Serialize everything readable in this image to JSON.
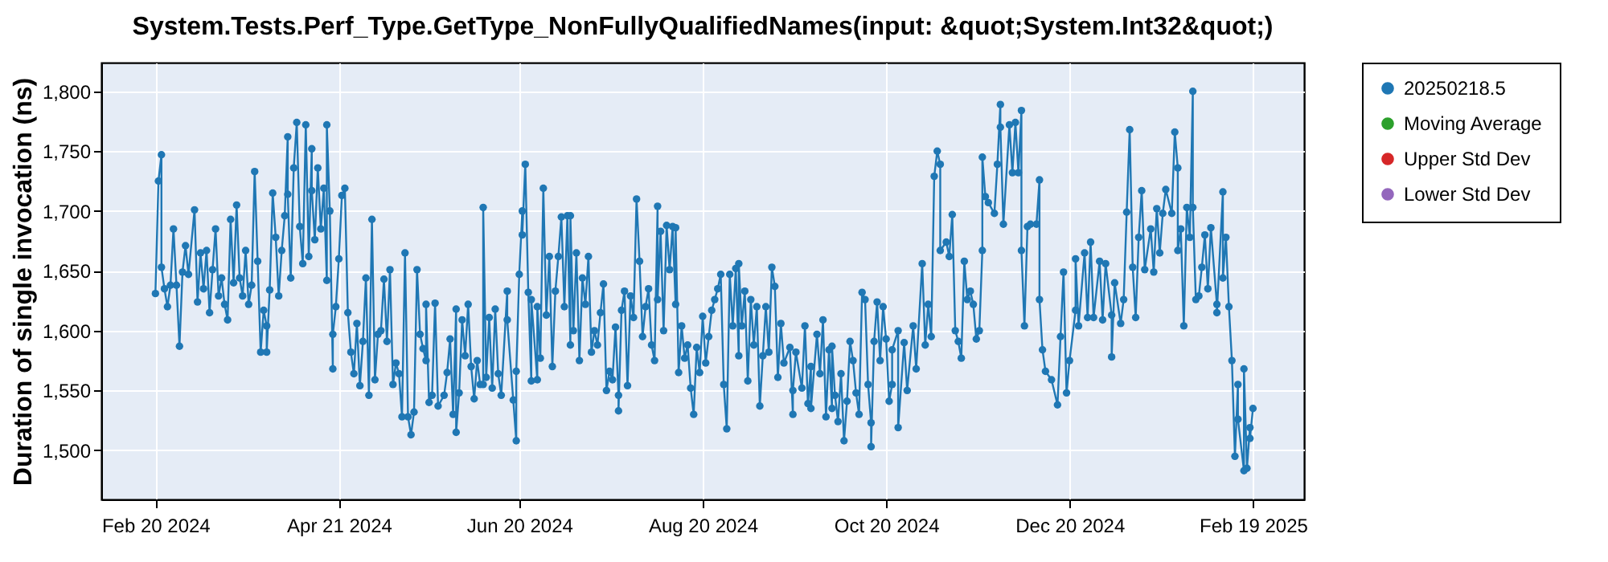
{
  "chart_data": {
    "type": "line",
    "title": "System.Tests.Perf_Type.GetType_NonFullyQualifiedNames(input: &quot;System.Int32&quot;)",
    "ylabel": "Duration of single invocation (ns)",
    "xlim": [
      "2024-02-02",
      "2025-03-08"
    ],
    "xticks": [
      {
        "value": "2024-02-20",
        "label": "Feb 20 2024"
      },
      {
        "value": "2024-04-21",
        "label": "Apr 21 2024"
      },
      {
        "value": "2024-06-20",
        "label": "Jun 20 2024"
      },
      {
        "value": "2024-08-20",
        "label": "Aug 20 2024"
      },
      {
        "value": "2024-10-20",
        "label": "Oct 20 2024"
      },
      {
        "value": "2024-12-20",
        "label": "Dec 20 2024"
      },
      {
        "value": "2025-02-19",
        "label": "Feb 19 2025"
      }
    ],
    "ylim": [
      1459,
      1824
    ],
    "yticks": [
      {
        "value": 1500,
        "label": "1,500"
      },
      {
        "value": 1550,
        "label": "1,550"
      },
      {
        "value": 1600,
        "label": "1,600"
      },
      {
        "value": 1650,
        "label": "1,650"
      },
      {
        "value": 1700,
        "label": "1,700"
      },
      {
        "value": 1750,
        "label": "1,750"
      },
      {
        "value": 1800,
        "label": "1,800"
      }
    ],
    "grid": true,
    "legend": "right",
    "marker": "circle",
    "line_style": "solid",
    "x": [
      "2024-02-20",
      "2024-02-21",
      "2024-02-22",
      "2024-02-22",
      "2024-02-23",
      "2024-02-24",
      "2024-02-25",
      "2024-02-26",
      "2024-02-27",
      "2024-02-28",
      "2024-02-29",
      "2024-03-01",
      "2024-03-02",
      "2024-03-04",
      "2024-03-05",
      "2024-03-06",
      "2024-03-07",
      "2024-03-08",
      "2024-03-09",
      "2024-03-10",
      "2024-03-11",
      "2024-03-12",
      "2024-03-13",
      "2024-03-14",
      "2024-03-15",
      "2024-03-16",
      "2024-03-17",
      "2024-03-18",
      "2024-03-19",
      "2024-03-20",
      "2024-03-21",
      "2024-03-22",
      "2024-03-23",
      "2024-03-24",
      "2024-03-25",
      "2024-03-26",
      "2024-03-27",
      "2024-03-28",
      "2024-03-28",
      "2024-03-29",
      "2024-03-30",
      "2024-03-31",
      "2024-04-01",
      "2024-04-02",
      "2024-04-03",
      "2024-04-04",
      "2024-04-04",
      "2024-04-05",
      "2024-04-06",
      "2024-04-07",
      "2024-04-08",
      "2024-04-09",
      "2024-04-10",
      "2024-04-11",
      "2024-04-12",
      "2024-04-12",
      "2024-04-13",
      "2024-04-14",
      "2024-04-15",
      "2024-04-16",
      "2024-04-17",
      "2024-04-17",
      "2024-04-18",
      "2024-04-19",
      "2024-04-19",
      "2024-04-20",
      "2024-04-21",
      "2024-04-22",
      "2024-04-23",
      "2024-04-24",
      "2024-04-25",
      "2024-04-26",
      "2024-04-27",
      "2024-04-28",
      "2024-04-29",
      "2024-04-30",
      "2024-05-01",
      "2024-05-02",
      "2024-05-03",
      "2024-05-04",
      "2024-05-05",
      "2024-05-06",
      "2024-05-07",
      "2024-05-08",
      "2024-05-09",
      "2024-05-10",
      "2024-05-11",
      "2024-05-12",
      "2024-05-13",
      "2024-05-14",
      "2024-05-15",
      "2024-05-16",
      "2024-05-17",
      "2024-05-18",
      "2024-05-19",
      "2024-05-20",
      "2024-05-20",
      "2024-05-21",
      "2024-05-22",
      "2024-05-23",
      "2024-05-24",
      "2024-05-26",
      "2024-05-27",
      "2024-05-28",
      "2024-05-29",
      "2024-05-30",
      "2024-05-30",
      "2024-05-31",
      "2024-06-01",
      "2024-06-02",
      "2024-06-03",
      "2024-06-04",
      "2024-06-05",
      "2024-06-06",
      "2024-06-07",
      "2024-06-08",
      "2024-06-08",
      "2024-06-09",
      "2024-06-10",
      "2024-06-11",
      "2024-06-12",
      "2024-06-13",
      "2024-06-14",
      "2024-06-16",
      "2024-06-16",
      "2024-06-18",
      "2024-06-19",
      "2024-06-19",
      "2024-06-20",
      "2024-06-21",
      "2024-06-21",
      "2024-06-22",
      "2024-06-23",
      "2024-06-24",
      "2024-06-24",
      "2024-06-26",
      "2024-06-26",
      "2024-06-27",
      "2024-06-28",
      "2024-06-29",
      "2024-06-30",
      "2024-07-01",
      "2024-07-02",
      "2024-07-03",
      "2024-07-04",
      "2024-07-05",
      "2024-07-06",
      "2024-07-07",
      "2024-07-07",
      "2024-07-08",
      "2024-07-09",
      "2024-07-10",
      "2024-07-11",
      "2024-07-12",
      "2024-07-13",
      "2024-07-14",
      "2024-07-15",
      "2024-07-16",
      "2024-07-17",
      "2024-07-18",
      "2024-07-19",
      "2024-07-20",
      "2024-07-21",
      "2024-07-22",
      "2024-07-23",
      "2024-07-23",
      "2024-07-24",
      "2024-07-25",
      "2024-07-26",
      "2024-07-27",
      "2024-07-28",
      "2024-07-29",
      "2024-07-30",
      "2024-07-31",
      "2024-08-01",
      "2024-08-02",
      "2024-08-03",
      "2024-08-04",
      "2024-08-05",
      "2024-08-05",
      "2024-08-06",
      "2024-08-07",
      "2024-08-08",
      "2024-08-09",
      "2024-08-10",
      "2024-08-11",
      "2024-08-11",
      "2024-08-12",
      "2024-08-13",
      "2024-08-14",
      "2024-08-15",
      "2024-08-16",
      "2024-08-17",
      "2024-08-18",
      "2024-08-19",
      "2024-08-20",
      "2024-08-21",
      "2024-08-22",
      "2024-08-23",
      "2024-08-24",
      "2024-08-25",
      "2024-08-26",
      "2024-08-27",
      "2024-08-28",
      "2024-08-29",
      "2024-08-30",
      "2024-08-31",
      "2024-09-01",
      "2024-09-01",
      "2024-09-02",
      "2024-09-03",
      "2024-09-04",
      "2024-09-05",
      "2024-09-06",
      "2024-09-07",
      "2024-09-08",
      "2024-09-09",
      "2024-09-10",
      "2024-09-11",
      "2024-09-12",
      "2024-09-13",
      "2024-09-14",
      "2024-09-15",
      "2024-09-16",
      "2024-09-18",
      "2024-09-19",
      "2024-09-19",
      "2024-09-20",
      "2024-09-22",
      "2024-09-23",
      "2024-09-24",
      "2024-09-25",
      "2024-09-25",
      "2024-09-27",
      "2024-09-28",
      "2024-09-29",
      "2024-09-30",
      "2024-10-01",
      "2024-10-02",
      "2024-10-02",
      "2024-10-03",
      "2024-10-04",
      "2024-10-05",
      "2024-10-06",
      "2024-10-07",
      "2024-10-08",
      "2024-10-09",
      "2024-10-10",
      "2024-10-11",
      "2024-10-12",
      "2024-10-13",
      "2024-10-14",
      "2024-10-15",
      "2024-10-15",
      "2024-10-16",
      "2024-10-17",
      "2024-10-18",
      "2024-10-19",
      "2024-10-20",
      "2024-10-21",
      "2024-10-22",
      "2024-10-22",
      "2024-10-24",
      "2024-10-24",
      "2024-10-26",
      "2024-10-27",
      "2024-10-29",
      "2024-10-30",
      "2024-11-01",
      "2024-11-02",
      "2024-11-03",
      "2024-11-04",
      "2024-11-05",
      "2024-11-06",
      "2024-11-07",
      "2024-11-07",
      "2024-11-09",
      "2024-11-10",
      "2024-11-11",
      "2024-11-12",
      "2024-11-13",
      "2024-11-14",
      "2024-11-15",
      "2024-11-16",
      "2024-11-17",
      "2024-11-18",
      "2024-11-19",
      "2024-11-20",
      "2024-11-21",
      "2024-11-21",
      "2024-11-22",
      "2024-11-23",
      "2024-11-25",
      "2024-11-26",
      "2024-11-27",
      "2024-11-27",
      "2024-11-28",
      "2024-11-30",
      "2024-12-01",
      "2024-12-02",
      "2024-12-03",
      "2024-12-04",
      "2024-12-04",
      "2024-12-05",
      "2024-12-06",
      "2024-12-07",
      "2024-12-09",
      "2024-12-10",
      "2024-12-10",
      "2024-12-11",
      "2024-12-12",
      "2024-12-14",
      "2024-12-16",
      "2024-12-17",
      "2024-12-18",
      "2024-12-19",
      "2024-12-20",
      "2024-12-22",
      "2024-12-22",
      "2024-12-23",
      "2024-12-25",
      "2024-12-26",
      "2024-12-27",
      "2024-12-28",
      "2024-12-30",
      "2024-12-31",
      "2025-01-01",
      "2025-01-03",
      "2025-01-03",
      "2025-01-04",
      "2025-01-06",
      "2025-01-07",
      "2025-01-08",
      "2025-01-09",
      "2025-01-10",
      "2025-01-11",
      "2025-01-12",
      "2025-01-13",
      "2025-01-14",
      "2025-01-16",
      "2025-01-17",
      "2025-01-18",
      "2025-01-19",
      "2025-01-20",
      "2025-01-21",
      "2025-01-23",
      "2025-01-24",
      "2025-01-25",
      "2025-01-25",
      "2025-01-26",
      "2025-01-27",
      "2025-01-28",
      "2025-01-29",
      "2025-01-30",
      "2025-01-30",
      "2025-01-31",
      "2025-02-01",
      "2025-02-02",
      "2025-02-03",
      "2025-02-04",
      "2025-02-05",
      "2025-02-07",
      "2025-02-07",
      "2025-02-09",
      "2025-02-09",
      "2025-02-10",
      "2025-02-11",
      "2025-02-12",
      "2025-02-13",
      "2025-02-14",
      "2025-02-14",
      "2025-02-16",
      "2025-02-16",
      "2025-02-17",
      "2025-02-18",
      "2025-02-18",
      "2025-02-19"
    ],
    "series": [
      {
        "name": "20250218.5",
        "color": "#1f77b4",
        "values": [
          1631,
          1725,
          1747,
          1653,
          1635,
          1620,
          1638,
          1685,
          1638,
          1587,
          1649,
          1671,
          1647,
          1701,
          1624,
          1665,
          1635,
          1667,
          1615,
          1651,
          1685,
          1629,
          1644,
          1622,
          1609,
          1693,
          1640,
          1705,
          1644,
          1629,
          1667,
          1622,
          1638,
          1733,
          1658,
          1582,
          1617,
          1604,
          1582,
          1634,
          1715,
          1678,
          1629,
          1667,
          1696,
          1762,
          1714,
          1644,
          1736,
          1774,
          1687,
          1656,
          1772,
          1662,
          1752,
          1717,
          1676,
          1736,
          1685,
          1719,
          1642,
          1772,
          1700,
          1568,
          1597,
          1620,
          1660,
          1713,
          1719,
          1615,
          1582,
          1564,
          1606,
          1554,
          1591,
          1644,
          1546,
          1693,
          1559,
          1597,
          1600,
          1643,
          1591,
          1651,
          1555,
          1573,
          1564,
          1528,
          1665,
          1528,
          1513,
          1532,
          1651,
          1597,
          1585,
          1575,
          1622,
          1540,
          1546,
          1623,
          1537,
          1546,
          1565,
          1593,
          1530,
          1618,
          1515,
          1548,
          1609,
          1579,
          1622,
          1570,
          1543,
          1575,
          1555,
          1555,
          1703,
          1561,
          1611,
          1552,
          1618,
          1564,
          1546,
          1633,
          1609,
          1542,
          1508,
          1566,
          1647,
          1700,
          1680,
          1739,
          1632,
          1558,
          1626,
          1559,
          1620,
          1577,
          1719,
          1613,
          1662,
          1570,
          1633,
          1662,
          1695,
          1620,
          1696,
          1588,
          1696,
          1600,
          1665,
          1575,
          1644,
          1622,
          1662,
          1582,
          1600,
          1588,
          1615,
          1639,
          1550,
          1566,
          1559,
          1603,
          1546,
          1533,
          1617,
          1633,
          1554,
          1629,
          1611,
          1710,
          1658,
          1595,
          1620,
          1635,
          1588,
          1575,
          1704,
          1626,
          1683,
          1600,
          1688,
          1651,
          1687,
          1622,
          1686,
          1565,
          1604,
          1577,
          1588,
          1552,
          1530,
          1586,
          1565,
          1612,
          1573,
          1595,
          1617,
          1626,
          1635,
          1647,
          1555,
          1518,
          1647,
          1604,
          1652,
          1579,
          1656,
          1604,
          1633,
          1558,
          1626,
          1588,
          1620,
          1537,
          1579,
          1620,
          1582,
          1653,
          1637,
          1561,
          1606,
          1573,
          1586,
          1530,
          1550,
          1582,
          1552,
          1604,
          1539,
          1570,
          1535,
          1597,
          1564,
          1609,
          1528,
          1584,
          1535,
          1587,
          1546,
          1524,
          1564,
          1508,
          1541,
          1591,
          1575,
          1548,
          1530,
          1632,
          1626,
          1555,
          1523,
          1503,
          1591,
          1624,
          1575,
          1620,
          1593,
          1541,
          1555,
          1584,
          1600,
          1519,
          1590,
          1550,
          1604,
          1568,
          1656,
          1588,
          1622,
          1595,
          1729,
          1750,
          1739,
          1667,
          1674,
          1662,
          1697,
          1600,
          1591,
          1577,
          1658,
          1626,
          1633,
          1622,
          1593,
          1600,
          1667,
          1745,
          1712,
          1707,
          1698,
          1739,
          1789,
          1770,
          1689,
          1772,
          1732,
          1774,
          1732,
          1784,
          1667,
          1604,
          1687,
          1689,
          1689,
          1726,
          1626,
          1584,
          1566,
          1559,
          1538,
          1595,
          1649,
          1548,
          1575,
          1617,
          1660,
          1604,
          1665,
          1611,
          1674,
          1611,
          1658,
          1609,
          1656,
          1613,
          1578,
          1640,
          1606,
          1626,
          1699,
          1768,
          1653,
          1611,
          1678,
          1717,
          1651,
          1685,
          1649,
          1702,
          1665,
          1698,
          1718,
          1698,
          1766,
          1736,
          1667,
          1685,
          1604,
          1703,
          1678,
          1800,
          1703,
          1626,
          1629,
          1653,
          1680,
          1635,
          1686,
          1622,
          1615,
          1716,
          1644,
          1678,
          1620,
          1575,
          1495,
          1555,
          1526,
          1483,
          1568,
          1485,
          1519,
          1510,
          1535
        ]
      },
      {
        "name": "Moving Average",
        "color": "#2ca02c",
        "values": [
          null,
          null,
          null,
          null,
          null,
          null,
          null,
          null,
          null,
          null,
          null,
          null,
          null,
          null,
          null,
          null,
          null,
          null,
          null,
          null,
          null,
          null,
          null,
          null,
          null,
          null,
          null,
          null,
          null,
          null,
          null,
          null,
          null,
          null,
          null,
          null,
          null,
          null,
          null,
          null,
          null,
          null,
          null,
          null,
          null,
          null,
          null,
          null,
          null,
          null,
          null,
          null,
          null,
          null,
          null,
          null,
          null,
          null,
          null,
          null,
          null,
          null,
          null,
          null,
          null,
          null,
          null,
          null,
          null,
          null,
          null,
          null,
          null,
          null,
          null,
          null,
          null,
          null,
          null,
          null,
          null,
          null,
          null,
          null,
          null,
          null,
          null,
          null,
          null,
          null,
          null,
          null,
          null,
          null,
          null,
          null,
          null,
          null,
          null,
          null,
          null,
          null,
          null,
          null,
          null,
          null,
          null,
          null,
          null,
          null,
          null,
          null,
          null,
          null,
          null,
          null,
          null,
          null,
          null,
          null,
          null,
          null,
          null,
          null,
          null,
          null,
          null,
          null,
          null,
          null,
          null,
          null,
          null,
          null,
          null,
          null,
          null,
          null,
          null,
          null,
          null,
          null,
          null,
          null,
          null,
          null,
          null,
          null,
          null,
          null,
          null,
          null,
          null,
          null,
          null,
          null,
          null,
          null,
          null,
          null,
          null,
          null,
          null,
          null,
          null,
          null,
          null,
          null,
          null,
          null,
          null,
          null,
          null,
          null,
          null,
          null,
          null,
          null,
          null,
          null,
          null,
          null,
          null,
          null,
          null,
          null,
          null,
          null,
          null,
          null,
          null,
          null,
          null,
          null,
          null,
          null,
          null,
          null,
          null,
          null,
          null,
          null,
          null,
          null,
          null,
          null,
          null,
          null,
          null,
          null,
          null,
          null,
          null,
          null,
          null,
          null,
          null,
          null,
          null,
          null,
          null,
          null,
          null,
          null,
          null,
          null,
          null,
          null,
          null,
          null,
          null,
          null,
          null,
          null,
          null,
          null,
          null,
          null,
          null,
          null,
          null,
          null,
          null,
          null,
          null,
          null,
          null,
          null,
          null,
          null,
          null,
          null,
          null,
          null,
          null,
          null,
          null,
          null,
          null,
          null,
          null,
          null,
          null,
          null,
          null,
          null,
          null,
          null,
          null,
          null,
          null,
          null,
          null,
          null,
          null,
          null,
          null,
          null,
          null,
          null,
          null,
          null,
          null,
          null,
          null,
          null,
          null,
          null,
          null,
          null,
          null,
          null,
          null,
          null,
          null,
          null,
          null,
          null,
          null,
          null,
          null,
          null,
          null,
          null,
          null,
          null,
          null,
          null,
          null,
          null,
          null,
          null,
          null,
          null,
          null,
          null,
          null,
          null,
          null,
          null,
          null,
          null,
          null,
          null,
          null,
          null,
          null,
          null,
          null,
          null,
          null,
          null,
          null,
          null,
          null,
          null,
          null,
          null,
          null,
          null,
          null,
          null,
          null,
          null,
          null,
          null,
          null,
          null,
          null,
          null,
          null,
          null,
          null,
          null,
          null,
          null,
          null,
          null,
          null,
          null,
          null,
          null,
          null,
          null,
          null,
          null,
          null,
          null,
          null,
          null,
          null,
          null,
          null,
          null,
          null,
          null,
          null
        ]
      },
      {
        "name": "Upper Std Dev",
        "color": "#d62728",
        "values": [
          null,
          null,
          null,
          null,
          null,
          null,
          null,
          null,
          null,
          null,
          null,
          null,
          null,
          null,
          null,
          null,
          null,
          null,
          null,
          null,
          null,
          null,
          null,
          null,
          null,
          null,
          null,
          null,
          null,
          null,
          null,
          null,
          null,
          null,
          null,
          null,
          null,
          null,
          null,
          null,
          null,
          null,
          null,
          null,
          null,
          null,
          null,
          null,
          null,
          null,
          null,
          null,
          null,
          null,
          null,
          null,
          null,
          null,
          null,
          null,
          null,
          null,
          null,
          null,
          null,
          null,
          null,
          null,
          null,
          null,
          null,
          null,
          null,
          null,
          null,
          null,
          null,
          null,
          null,
          null,
          null,
          null,
          null,
          null,
          null,
          null,
          null,
          null,
          null,
          null,
          null,
          null,
          null,
          null,
          null,
          null,
          null,
          null,
          null,
          null,
          null,
          null,
          null,
          null,
          null,
          null,
          null,
          null,
          null,
          null,
          null,
          null,
          null,
          null,
          null,
          null,
          null,
          null,
          null,
          null,
          null,
          null,
          null,
          null,
          null,
          null,
          null,
          null,
          null,
          null,
          null,
          null,
          null,
          null,
          null,
          null,
          null,
          null,
          null,
          null,
          null,
          null,
          null,
          null,
          null,
          null,
          null,
          null,
          null,
          null,
          null,
          null,
          null,
          null,
          null,
          null,
          null,
          null,
          null,
          null,
          null,
          null,
          null,
          null,
          null,
          null,
          null,
          null,
          null,
          null,
          null,
          null,
          null,
          null,
          null,
          null,
          null,
          null,
          null,
          null,
          null,
          null,
          null,
          null,
          null,
          null,
          null,
          null,
          null,
          null,
          null,
          null,
          null,
          null,
          null,
          null,
          null,
          null,
          null,
          null,
          null,
          null,
          null,
          null,
          null,
          null,
          null,
          null,
          null,
          null,
          null,
          null,
          null,
          null,
          null,
          null,
          null,
          null,
          null,
          null,
          null,
          null,
          null,
          null,
          null,
          null,
          null,
          null,
          null,
          null,
          null,
          null,
          null,
          null,
          null,
          null,
          null,
          null,
          null,
          null,
          null,
          null,
          null,
          null,
          null,
          null,
          null,
          null,
          null,
          null,
          null,
          null,
          null,
          null,
          null,
          null,
          null,
          null,
          null,
          null,
          null,
          null,
          null,
          null,
          null,
          null,
          null,
          null,
          null,
          null,
          null,
          null,
          null,
          null,
          null,
          null,
          null,
          null,
          null,
          null,
          null,
          null,
          null,
          null,
          null,
          null,
          null,
          null,
          null,
          null,
          null,
          null,
          null,
          null,
          null,
          null,
          null,
          null,
          null,
          null,
          null,
          null,
          null,
          null,
          null,
          null,
          null,
          null,
          null,
          null,
          null,
          null,
          null,
          null,
          null,
          null,
          null,
          null,
          null,
          null,
          null,
          null,
          null,
          null,
          null,
          null,
          null,
          null,
          null,
          null,
          null,
          null,
          null,
          null,
          null,
          null,
          null,
          null,
          null,
          null,
          null,
          null,
          null,
          null,
          null,
          null,
          null,
          null,
          null,
          null,
          null,
          null,
          null,
          null,
          null,
          null,
          null,
          null,
          null,
          null,
          null,
          null,
          null,
          null,
          null,
          null,
          null,
          null,
          null,
          null,
          null,
          null,
          null,
          null,
          null,
          null,
          null
        ]
      },
      {
        "name": "Lower Std Dev",
        "color": "#9467bd",
        "values": [
          null,
          null,
          null,
          null,
          null,
          null,
          null,
          null,
          null,
          null,
          null,
          null,
          null,
          null,
          null,
          null,
          null,
          null,
          null,
          null,
          null,
          null,
          null,
          null,
          null,
          null,
          null,
          null,
          null,
          null,
          null,
          null,
          null,
          null,
          null,
          null,
          null,
          null,
          null,
          null,
          null,
          null,
          null,
          null,
          null,
          null,
          null,
          null,
          null,
          null,
          null,
          null,
          null,
          null,
          null,
          null,
          null,
          null,
          null,
          null,
          null,
          null,
          null,
          null,
          null,
          null,
          null,
          null,
          null,
          null,
          null,
          null,
          null,
          null,
          null,
          null,
          null,
          null,
          null,
          null,
          null,
          null,
          null,
          null,
          null,
          null,
          null,
          null,
          null,
          null,
          null,
          null,
          null,
          null,
          null,
          null,
          null,
          null,
          null,
          null,
          null,
          null,
          null,
          null,
          null,
          null,
          null,
          null,
          null,
          null,
          null,
          null,
          null,
          null,
          null,
          null,
          null,
          null,
          null,
          null,
          null,
          null,
          null,
          null,
          null,
          null,
          null,
          null,
          null,
          null,
          null,
          null,
          null,
          null,
          null,
          null,
          null,
          null,
          null,
          null,
          null,
          null,
          null,
          null,
          null,
          null,
          null,
          null,
          null,
          null,
          null,
          null,
          null,
          null,
          null,
          null,
          null,
          null,
          null,
          null,
          null,
          null,
          null,
          null,
          null,
          null,
          null,
          null,
          null,
          null,
          null,
          null,
          null,
          null,
          null,
          null,
          null,
          null,
          null,
          null,
          null,
          null,
          null,
          null,
          null,
          null,
          null,
          null,
          null,
          null,
          null,
          null,
          null,
          null,
          null,
          null,
          null,
          null,
          null,
          null,
          null,
          null,
          null,
          null,
          null,
          null,
          null,
          null,
          null,
          null,
          null,
          null,
          null,
          null,
          null,
          null,
          null,
          null,
          null,
          null,
          null,
          null,
          null,
          null,
          null,
          null,
          null,
          null,
          null,
          null,
          null,
          null,
          null,
          null,
          null,
          null,
          null,
          null,
          null,
          null,
          null,
          null,
          null,
          null,
          null,
          null,
          null,
          null,
          null,
          null,
          null,
          null,
          null,
          null,
          null,
          null,
          null,
          null,
          null,
          null,
          null,
          null,
          null,
          null,
          null,
          null,
          null,
          null,
          null,
          null,
          null,
          null,
          null,
          null,
          null,
          null,
          null,
          null,
          null,
          null,
          null,
          null,
          null,
          null,
          null,
          null,
          null,
          null,
          null,
          null,
          null,
          null,
          null,
          null,
          null,
          null,
          null,
          null,
          null,
          null,
          null,
          null,
          null,
          null,
          null,
          null,
          null,
          null,
          null,
          null,
          null,
          null,
          null,
          null,
          null,
          null,
          null,
          null,
          null,
          null,
          null,
          null,
          null,
          null,
          null,
          null,
          null,
          null,
          null,
          null,
          null,
          null,
          null,
          null,
          null,
          null,
          null,
          null,
          null,
          null,
          null,
          null,
          null,
          null,
          null,
          null,
          null,
          null,
          null,
          null,
          null,
          null,
          null,
          null,
          null,
          null,
          null,
          null,
          null,
          null,
          null,
          null,
          null,
          null,
          null,
          null,
          null,
          null,
          null,
          null,
          null,
          null,
          null,
          null,
          null,
          null,
          null
        ]
      }
    ]
  }
}
